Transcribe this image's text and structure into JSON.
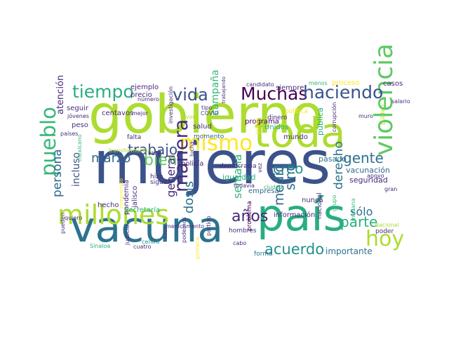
{
  "words": [
    {
      "text": "mujeres"
    },
    {
      "text": "gobierno"
    },
    {
      "text": "toda"
    },
    {
      "text": "vacuna"
    },
    {
      "text": "país"
    },
    {
      "text": "millones"
    },
    {
      "text": "violencia"
    },
    {
      "text": "Muchas"
    },
    {
      "text": "haciendo"
    },
    {
      "text": "tiempo"
    },
    {
      "text": "vida"
    },
    {
      "text": "pueblo"
    },
    {
      "text": "mismo"
    },
    {
      "text": "manera"
    },
    {
      "text": "bien"
    },
    {
      "text": "trabajo"
    },
    {
      "text": "marzo"
    },
    {
      "text": "hoy"
    },
    {
      "text": "años"
    },
    {
      "text": "acuerdo"
    },
    {
      "text": "creo"
    },
    {
      "text": "gente"
    },
    {
      "text": "parte"
    },
    {
      "text": "dosis"
    },
    {
      "text": "persona"
    },
    {
      "text": "derecho"
    },
    {
      "text": "medio"
    },
    {
      "text": "sino"
    },
    {
      "text": "sólo"
    },
    {
      "text": "semana"
    },
    {
      "text": "general"
    },
    {
      "text": "importante"
    },
    {
      "text": "incluso"
    },
    {
      "text": "campaña"
    },
    {
      "text": "casos"
    },
    {
      "text": "atención"
    },
    {
      "text": "vacunación"
    },
    {
      "text": "seguridad"
    },
    {
      "text": "pasado"
    },
    {
      "text": "pública"
    },
    {
      "text": "programa"
    },
    {
      "text": "igualdad"
    },
    {
      "text": "democracia"
    },
    {
      "text": "policía"
    },
    {
      "text": "salud"
    },
    {
      "text": "momento"
    },
    {
      "text": "Unidos"
    },
    {
      "text": "mundo"
    },
    {
      "text": "dinero"
    },
    {
      "text": "política"
    },
    {
      "text": "corrupción"
    },
    {
      "text": "muro"
    },
    {
      "text": "salario"
    },
    {
      "text": "público"
    },
    {
      "text": "apoyo"
    },
    {
      "text": "gran"
    },
    {
      "text": "ejemplo"
    },
    {
      "text": "precio"
    },
    {
      "text": "número"
    },
    {
      "text": "seguir"
    },
    {
      "text": "jóvenes"
    },
    {
      "text": "peso"
    },
    {
      "text": "países"
    },
    {
      "text": "centavos"
    },
    {
      "text": "mejor"
    },
    {
      "text": "investigación"
    },
    {
      "text": "falta"
    },
    {
      "text": "tipo"
    },
    {
      "text": "COVID"
    },
    {
      "text": "trabajando"
    },
    {
      "text": "siempre"
    },
    {
      "text": "candidato"
    },
    {
      "text": "menos"
    },
    {
      "text": "proceso"
    },
    {
      "text": "transformación"
    },
    {
      "text": "obra"
    },
    {
      "text": "lucha"
    },
    {
      "text": "mexicano"
    },
    {
      "text": "compromiso"
    },
    {
      "text": "hecho"
    },
    {
      "text": "pandemia"
    },
    {
      "text": "jalisco"
    },
    {
      "text": "hizo"
    },
    {
      "text": "sigue"
    },
    {
      "text": "Secretaría"
    },
    {
      "text": "quiero"
    },
    {
      "text": "empresa"
    },
    {
      "text": "hombres"
    },
    {
      "text": "información"
    },
    {
      "text": "nunca"
    },
    {
      "text": "nacional"
    },
    {
      "text": "grupo"
    },
    {
      "text": "poder"
    },
    {
      "text": "Nacional"
    },
    {
      "text": "mañana"
    },
    {
      "text": "problema"
    },
    {
      "text": "cabo"
    },
    {
      "text": "forma"
    },
    {
      "text": "medicamento"
    },
    {
      "text": "partido"
    },
    {
      "text": "pueden"
    },
    {
      "text": "Sinaloa"
    },
    {
      "text": "justicia"
    },
    {
      "text": "centro"
    },
    {
      "text": "cuatro"
    },
    {
      "text": "coza"
    },
    {
      "text": "podemos"
    },
    {
      "text": "primera"
    },
    {
      "text": "todavía"
    },
    {
      "text": "ciudad"
    },
    {
      "text": "poner"
    },
    {
      "text": "vez"
    },
    {
      "text": "favor"
    }
  ]
}
